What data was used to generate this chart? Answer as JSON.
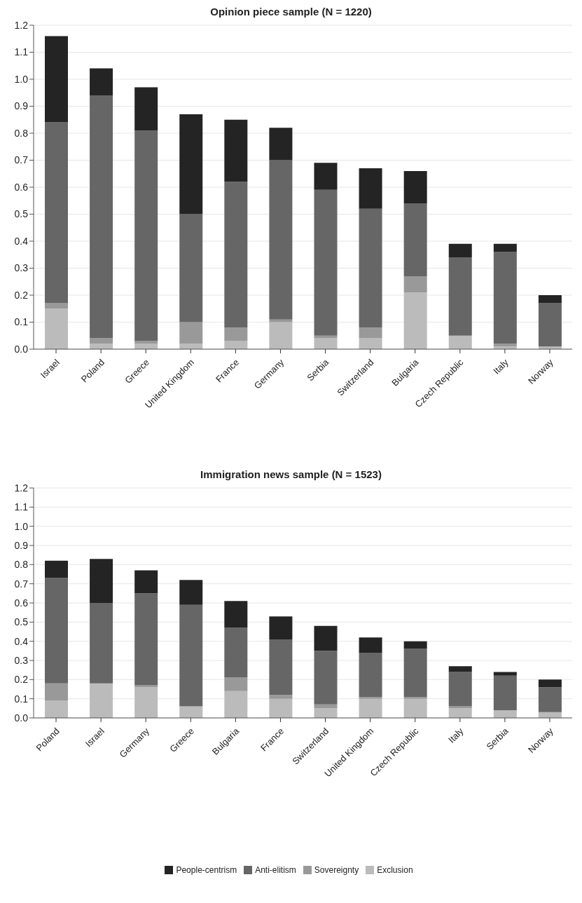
{
  "chart_data": [
    {
      "type": "bar",
      "title": "Opinion piece sample (N = 1220)",
      "stacked": true,
      "legend": false,
      "grid": "y",
      "categories": [
        "Israel",
        "Poland",
        "Greece",
        "United Kingdom",
        "France",
        "Germany",
        "Serbia",
        "Switzerland",
        "Bulgaria",
        "Czech Republic",
        "Italy",
        "Norway"
      ],
      "ylim": [
        0,
        1.2
      ],
      "yticks": [
        {
          "value": 0,
          "label": "0.0"
        },
        {
          "value": 0.1,
          "label": "0.1"
        },
        {
          "value": 0.2,
          "label": "0.2"
        },
        {
          "value": 0.3,
          "label": "0.3"
        },
        {
          "value": 0.4,
          "label": "0.4"
        },
        {
          "value": 0.5,
          "label": "0.5"
        },
        {
          "value": 0.6,
          "label": "0.6"
        },
        {
          "value": 0.7,
          "label": "0.7"
        },
        {
          "value": 0.8,
          "label": "0.8"
        },
        {
          "value": 0.9,
          "label": "0.9"
        },
        {
          "value": 1,
          "label": "1.0"
        },
        {
          "value": 1.1,
          "label": "1.1"
        },
        {
          "value": 1.2,
          "label": "1.2"
        }
      ],
      "series": [
        {
          "color": "#bbbbbb",
          "values": [
            0.15,
            0.02,
            0.02,
            0.02,
            0.03,
            0.1,
            0.04,
            0.04,
            0.21,
            0.05,
            0.01,
            0.01
          ]
        },
        {
          "color": "#999999",
          "values": [
            0.02,
            0.02,
            0.01,
            0.08,
            0.05,
            0.01,
            0.01,
            0.04,
            0.06,
            0,
            0.01,
            0
          ]
        },
        {
          "color": "#666666",
          "values": [
            0.67,
            0.9,
            0.78,
            0.4,
            0.54,
            0.59,
            0.54,
            0.44,
            0.27,
            0.29,
            0.34,
            0.16
          ]
        },
        {
          "color": "#242424",
          "values": [
            0.32,
            0.1,
            0.16,
            0.37,
            0.23,
            0.12,
            0.1,
            0.15,
            0.12,
            0.05,
            0.03,
            0.03
          ]
        }
      ]
    },
    {
      "type": "bar",
      "title": "Immigration news sample (N = 1523)",
      "stacked": true,
      "legend": "bottom",
      "grid": "y",
      "categories": [
        "Poland",
        "Israel",
        "Germany",
        "Greece",
        "Bulgaria",
        "France",
        "Switzerland",
        "United Kingdom",
        "Czech Republic",
        "Italy",
        "Serbia",
        "Norway"
      ],
      "ylim": [
        0,
        1.2
      ],
      "yticks": [
        {
          "value": 0,
          "label": "0.0"
        },
        {
          "value": 0.1,
          "label": "0.1"
        },
        {
          "value": 0.2,
          "label": "0.2"
        },
        {
          "value": 0.3,
          "label": "0.3"
        },
        {
          "value": 0.4,
          "label": "0.4"
        },
        {
          "value": 0.5,
          "label": "0.5"
        },
        {
          "value": 0.6,
          "label": "0.6"
        },
        {
          "value": 0.7,
          "label": "0.7"
        },
        {
          "value": 0.8,
          "label": "0.8"
        },
        {
          "value": 0.9,
          "label": "0.9"
        },
        {
          "value": 1,
          "label": "1.0"
        },
        {
          "value": 1.1,
          "label": "1.1"
        },
        {
          "value": 1.2,
          "label": "1.2"
        }
      ],
      "series": [
        {
          "name": "Exclusion",
          "color": "#bbbbbb",
          "values": [
            0.09,
            0.18,
            0.16,
            0.06,
            0.14,
            0.1,
            0.05,
            0.1,
            0.1,
            0.05,
            0.04,
            0.03
          ]
        },
        {
          "name": "Sovereignty",
          "color": "#999999",
          "values": [
            0.09,
            0,
            0.01,
            0,
            0.07,
            0.02,
            0.02,
            0.01,
            0.01,
            0.01,
            0,
            0
          ]
        },
        {
          "name": "Anti-elitism",
          "color": "#666666",
          "values": [
            0.55,
            0.42,
            0.48,
            0.53,
            0.26,
            0.29,
            0.28,
            0.23,
            0.25,
            0.18,
            0.18,
            0.13
          ]
        },
        {
          "name": "People-centrism",
          "color": "#242424",
          "values": [
            0.09,
            0.23,
            0.12,
            0.13,
            0.14,
            0.12,
            0.13,
            0.08,
            0.04,
            0.03,
            0.02,
            0.04
          ]
        }
      ]
    }
  ]
}
